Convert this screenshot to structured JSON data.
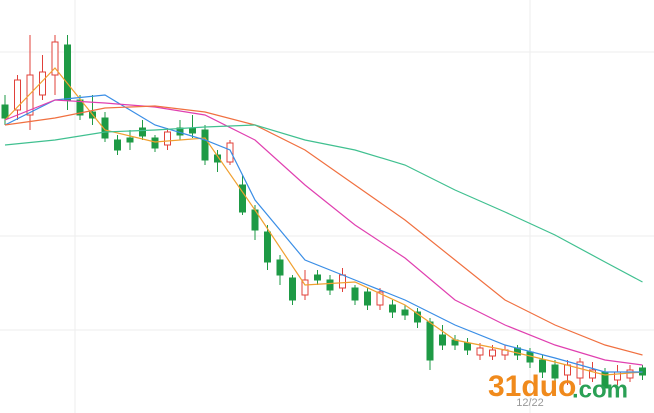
{
  "chart_data": {
    "type": "candlestick",
    "categories": [
      null,
      null,
      null,
      null,
      null,
      null,
      null,
      null,
      null,
      null,
      null,
      null,
      null,
      null,
      null,
      null,
      null,
      null,
      null,
      null,
      null,
      null,
      null,
      null,
      null,
      null,
      null,
      null,
      null,
      null,
      null,
      null,
      null,
      null,
      null,
      null,
      null,
      null,
      null,
      null,
      null,
      null,
      "12/22",
      null,
      null,
      null,
      null,
      null,
      null,
      null,
      null,
      null
    ],
    "open": [
      395,
      390,
      385,
      405,
      425,
      455,
      400,
      388,
      382,
      360,
      362,
      372,
      362,
      355,
      372,
      372,
      370,
      345,
      338,
      315,
      290,
      268,
      240,
      222,
      205,
      225,
      220,
      212,
      212,
      208,
      195,
      195,
      190,
      188,
      178,
      165,
      160,
      157,
      145,
      144,
      145,
      152,
      148,
      140,
      135,
      125,
      122,
      122,
      128,
      120,
      122,
      132
    ],
    "close": [
      382,
      420,
      425,
      428,
      458,
      400,
      385,
      382,
      362,
      350,
      358,
      364,
      352,
      368,
      365,
      367,
      340,
      338,
      357,
      288,
      270,
      238,
      225,
      200,
      220,
      220,
      210,
      225,
      200,
      195,
      208,
      188,
      185,
      178,
      140,
      155,
      155,
      150,
      152,
      150,
      150,
      145,
      138,
      128,
      122,
      135,
      138,
      130,
      112,
      128,
      130,
      125
    ],
    "high": [
      405,
      425,
      465,
      445,
      465,
      465,
      405,
      405,
      388,
      365,
      370,
      380,
      365,
      372,
      380,
      385,
      375,
      350,
      360,
      325,
      295,
      275,
      245,
      225,
      230,
      230,
      225,
      232,
      215,
      212,
      212,
      200,
      195,
      192,
      182,
      175,
      165,
      162,
      157,
      155,
      155,
      155,
      152,
      145,
      140,
      140,
      142,
      138,
      132,
      135,
      135,
      135
    ],
    "low": [
      375,
      380,
      370,
      400,
      405,
      390,
      380,
      375,
      358,
      345,
      350,
      360,
      348,
      350,
      360,
      362,
      335,
      328,
      335,
      285,
      260,
      230,
      215,
      195,
      200,
      215,
      205,
      208,
      195,
      190,
      190,
      182,
      180,
      172,
      130,
      150,
      150,
      145,
      140,
      140,
      140,
      140,
      132,
      122,
      115,
      115,
      115,
      118,
      108,
      115,
      118,
      120
    ],
    "up_color": "#e0403a",
    "down_color": "#1e9a45",
    "ylim": [
      87,
      500
    ],
    "series": [
      {
        "color": "#f0a030",
        "x": [
          0,
          4,
          8,
          12,
          16,
          20,
          24,
          28,
          32,
          36,
          40,
          44,
          48,
          51
        ],
        "values": [
          380,
          432,
          370,
          358,
          362,
          290,
          215,
          218,
          195,
          160,
          150,
          138,
          125,
          128
        ]
      },
      {
        "color": "#3a8ee6",
        "x": [
          0,
          4,
          8,
          12,
          16,
          18,
          20,
          24,
          28,
          32,
          36,
          40,
          44,
          48,
          51
        ],
        "values": [
          375,
          400,
          405,
          375,
          360,
          350,
          300,
          240,
          220,
          200,
          175,
          155,
          142,
          128,
          128
        ]
      },
      {
        "color": "#e040b0",
        "x": [
          0,
          4,
          8,
          12,
          16,
          20,
          24,
          28,
          32,
          36,
          40,
          44,
          48,
          51
        ],
        "values": [
          380,
          400,
          397,
          393,
          385,
          360,
          315,
          275,
          242,
          200,
          175,
          155,
          140,
          135
        ]
      },
      {
        "color": "#f07040",
        "x": [
          0,
          4,
          8,
          12,
          16,
          20,
          24,
          28,
          32,
          36,
          40,
          44,
          48,
          51
        ],
        "values": [
          375,
          382,
          392,
          394,
          388,
          375,
          350,
          315,
          280,
          240,
          200,
          175,
          155,
          145
        ]
      },
      {
        "color": "#40c090",
        "x": [
          0,
          4,
          8,
          12,
          16,
          20,
          24,
          28,
          32,
          36,
          40,
          44,
          48,
          51
        ],
        "values": [
          355,
          360,
          368,
          370,
          373,
          375,
          360,
          350,
          335,
          310,
          288,
          265,
          238,
          218
        ]
      }
    ],
    "watermark": {
      "main": "31duo",
      "suffix": ".com"
    }
  }
}
